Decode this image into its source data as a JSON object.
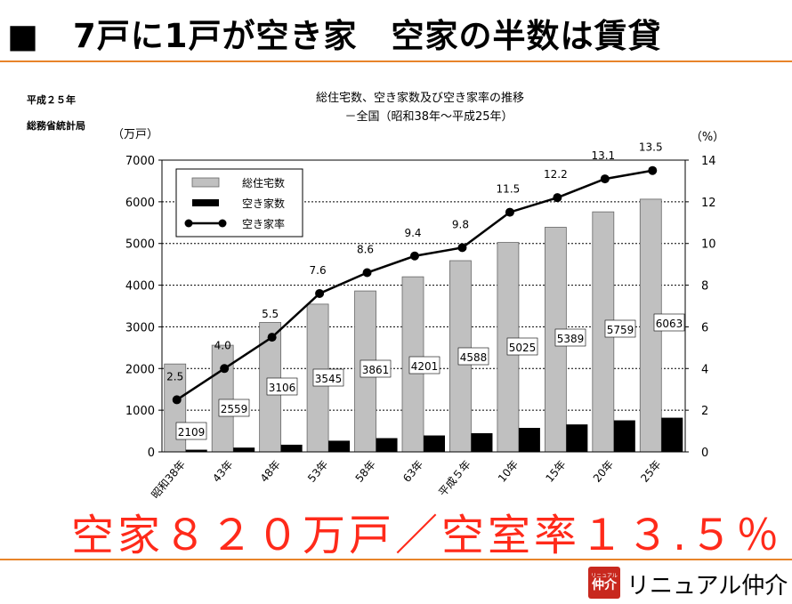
{
  "slide": {
    "title": "■　7戸に1戸が空き家　空家の半数は賃貸",
    "year": "平成２５年",
    "source": "総務省統計局",
    "headline": "空家８２０万戸／空室率１３.５％",
    "accent_color": "#e8842a",
    "headline_color": "#ff2a1a"
  },
  "brand": {
    "logo_small": "リニュアル",
    "logo_big": "仲介",
    "name": "リニュアル仲介",
    "logo_color": "#c8281e"
  },
  "chart_data": {
    "type": "bar",
    "title": "総住宅数、空き家数及び空き家率の推移",
    "subtitle": "－全国（昭和38年～平成25年）",
    "left_axis_unit": "（万戸）",
    "right_axis_unit": "（%）",
    "ylim": [
      0,
      7000
    ],
    "y_ticks": [
      0,
      1000,
      2000,
      3000,
      4000,
      5000,
      6000,
      7000
    ],
    "y2lim": [
      0,
      14
    ],
    "y2_ticks": [
      0,
      2,
      4,
      6,
      8,
      10,
      12,
      14
    ],
    "categories": [
      "昭和38年",
      "43年",
      "48年",
      "53年",
      "58年",
      "63年",
      "平成５年",
      "10年",
      "15年",
      "20年",
      "25年"
    ],
    "series": [
      {
        "name": "総住宅数",
        "type": "bar",
        "color": "#c0c0c0",
        "values": [
          2109,
          2559,
          3106,
          3545,
          3861,
          4201,
          4588,
          5025,
          5389,
          5759,
          6063
        ],
        "labels": [
          "2109",
          "2559",
          "3106",
          "3545",
          "3861",
          "4201",
          "4588",
          "5025",
          "5389",
          "5759",
          "6063"
        ]
      },
      {
        "name": "空き家数",
        "type": "bar",
        "color": "#000000",
        "values": [
          52,
          103,
          172,
          268,
          330,
          394,
          448,
          576,
          659,
          757,
          820
        ]
      },
      {
        "name": "空き家率",
        "type": "line",
        "axis": "right",
        "color": "#000000",
        "values": [
          2.5,
          4.0,
          5.5,
          7.6,
          8.6,
          9.4,
          9.8,
          11.5,
          12.2,
          13.1,
          13.5
        ],
        "labels": [
          "2.5",
          "4.0",
          "5.5",
          "7.6",
          "8.6",
          "9.4",
          "9.8",
          "11.5",
          "12.2",
          "13.1",
          "13.5"
        ]
      }
    ],
    "grid": true,
    "legend_position": "top-left"
  }
}
